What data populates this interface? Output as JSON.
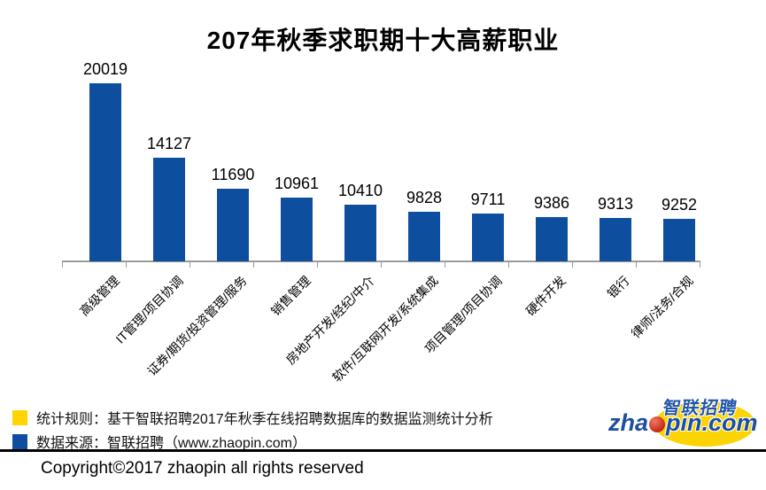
{
  "page": {
    "copyright": "Copyright©2017 zhaopin all rights reserved"
  },
  "chart_data": {
    "type": "bar",
    "title": "207年秋季求职期十大高薪职业",
    "categories": [
      "高级管理",
      "IT管理/项目协调",
      "证券/期货/投资管理/服务",
      "销售管理",
      "房地产开发/经纪/中介",
      "软件/互联网开发/系统集成",
      "项目管理/项目协调",
      "硬件开发",
      "银行",
      "律师/法务/合规"
    ],
    "values": [
      20019,
      14127,
      11690,
      10961,
      10410,
      9828,
      9711,
      9386,
      9313,
      9252
    ],
    "xlabel": "",
    "ylabel": "",
    "ylim": [
      5900,
      20100
    ],
    "grid": false,
    "legend": "none",
    "bar_color": "#0d4f9e",
    "value_labels_shown": true
  },
  "footnotes": [
    {
      "marker": "yellow-square",
      "marker_color": "#ffd400",
      "text": "统计规则：基干智联招聘2017年秋季在线招聘数据库的数据监测统计分析"
    },
    {
      "marker": "blue-square",
      "marker_color": "#0d4f9e",
      "text": "数据来源：智联招聘（www.zhaopin.com）"
    }
  ],
  "logo": {
    "chinese_text": "智联招聘",
    "domain_prefix": "zha",
    "domain_suffix": "pin.com",
    "text_color": "#1c4fa0",
    "ellipse_color": "#fcd303",
    "dot_color": "#c5281c"
  },
  "colors": {
    "bar_blue": "#0d4f9e",
    "note_yellow": "#ffd400",
    "axis_gray": "#9b9b9b",
    "text_black": "#000000"
  }
}
